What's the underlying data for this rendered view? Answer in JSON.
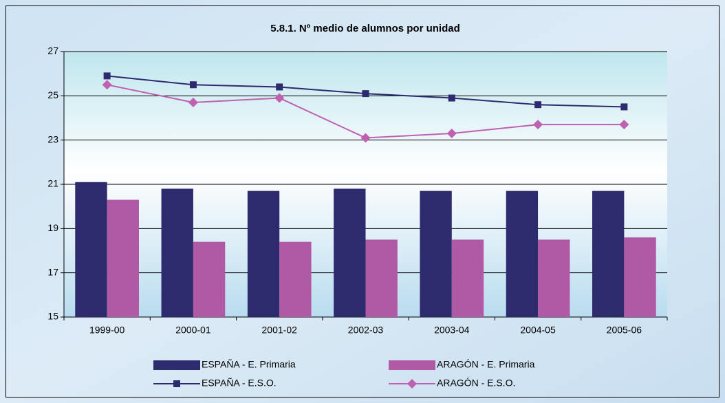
{
  "chart_data": {
    "type": "bar",
    "title": "5.8.1. Nº medio de alumnos por unidad",
    "categories": [
      "1999-00",
      "2000-01",
      "2001-02",
      "2002-03",
      "2003-04",
      "2004-05",
      "2005-06"
    ],
    "series": [
      {
        "name": "ESPAÑA - E. Primaria",
        "type": "bar",
        "color": "#2e2a6e",
        "values": [
          21.1,
          20.8,
          20.7,
          20.8,
          20.7,
          20.7,
          20.7
        ]
      },
      {
        "name": "ARAGÓN - E. Primaria",
        "type": "bar",
        "color": "#b05aa6",
        "values": [
          20.3,
          18.4,
          18.4,
          18.5,
          18.5,
          18.5,
          18.6
        ]
      },
      {
        "name": "ESPAÑA - E.S.O.",
        "type": "line",
        "marker": "square",
        "color": "#2e2a6e",
        "values": [
          25.9,
          25.5,
          25.4,
          25.1,
          24.9,
          24.6,
          24.5
        ]
      },
      {
        "name": "ARAGÓN - E.S.O.",
        "type": "line",
        "marker": "diamond",
        "color": "#c060b0",
        "values": [
          25.5,
          24.7,
          24.9,
          23.1,
          23.3,
          23.7,
          23.7
        ]
      }
    ],
    "ylim": [
      15,
      27
    ],
    "yticks": [
      15,
      17,
      19,
      21,
      23,
      25,
      27
    ],
    "grid": true,
    "legend": "bottom"
  }
}
